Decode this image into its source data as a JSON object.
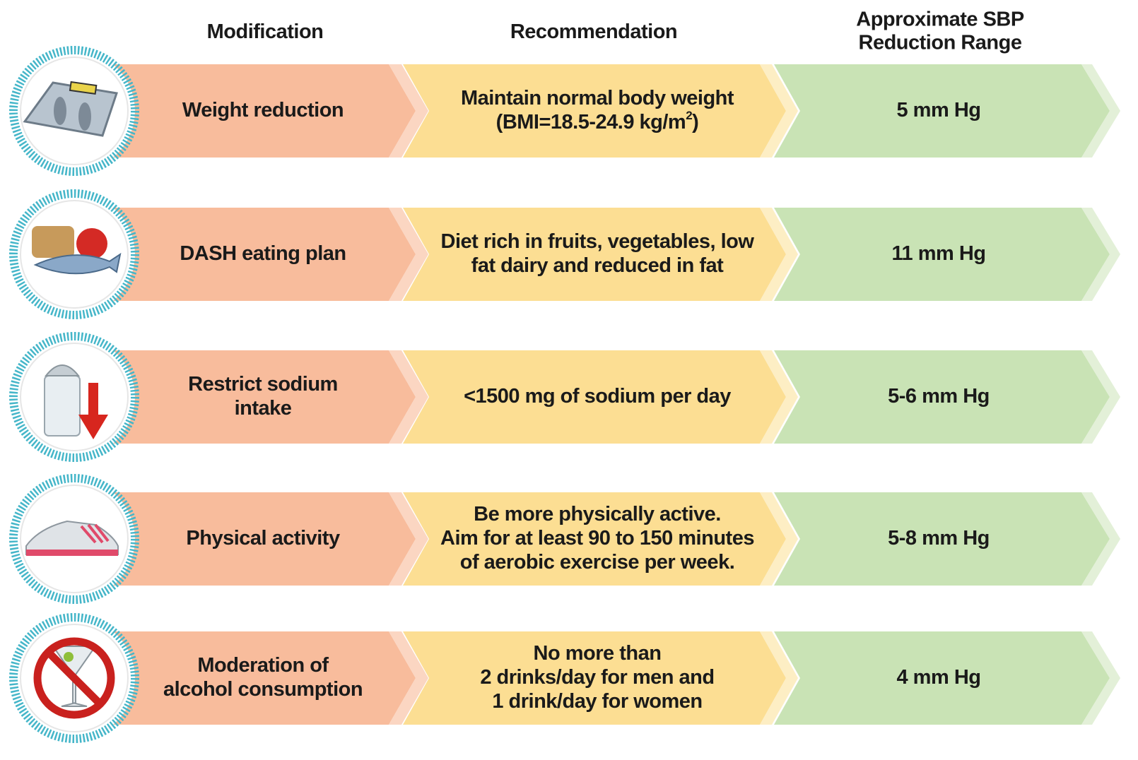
{
  "header": {
    "modification": [
      "Modification"
    ],
    "recommendation": [
      "Recommendation"
    ],
    "reduction": [
      "Approximate SBP",
      "Reduction Range"
    ]
  },
  "rows": [
    {
      "modification": [
        "Weight reduction"
      ],
      "recommendation": [
        "Maintain normal body weight",
        {
          "text": "(BMI=18.5-24.9 kg/m",
          "sup": "2",
          "tail": ")"
        }
      ],
      "reduction": [
        "5 mm Hg"
      ]
    },
    {
      "modification": [
        "DASH eating plan"
      ],
      "recommendation": [
        "Diet rich in fruits, vegetables, low",
        "fat dairy and reduced in fat"
      ],
      "reduction": [
        "11 mm Hg"
      ]
    },
    {
      "modification": [
        "Restrict sodium",
        "intake"
      ],
      "recommendation": [
        "<1500 mg of sodium per day"
      ],
      "reduction": [
        "5-6 mm Hg"
      ]
    },
    {
      "modification": [
        "Physical activity"
      ],
      "recommendation": [
        "Be more physically active.",
        "Aim for at least 90 to 150 minutes",
        "of aerobic exercise per week."
      ],
      "reduction": [
        "5-8 mm Hg"
      ]
    },
    {
      "modification": [
        "Moderation of",
        "alcohol consumption"
      ],
      "recommendation": [
        "No more than",
        "2 drinks/day for men and",
        "1 drink/day for women"
      ],
      "reduction": [
        "4 mm Hg"
      ]
    }
  ]
}
